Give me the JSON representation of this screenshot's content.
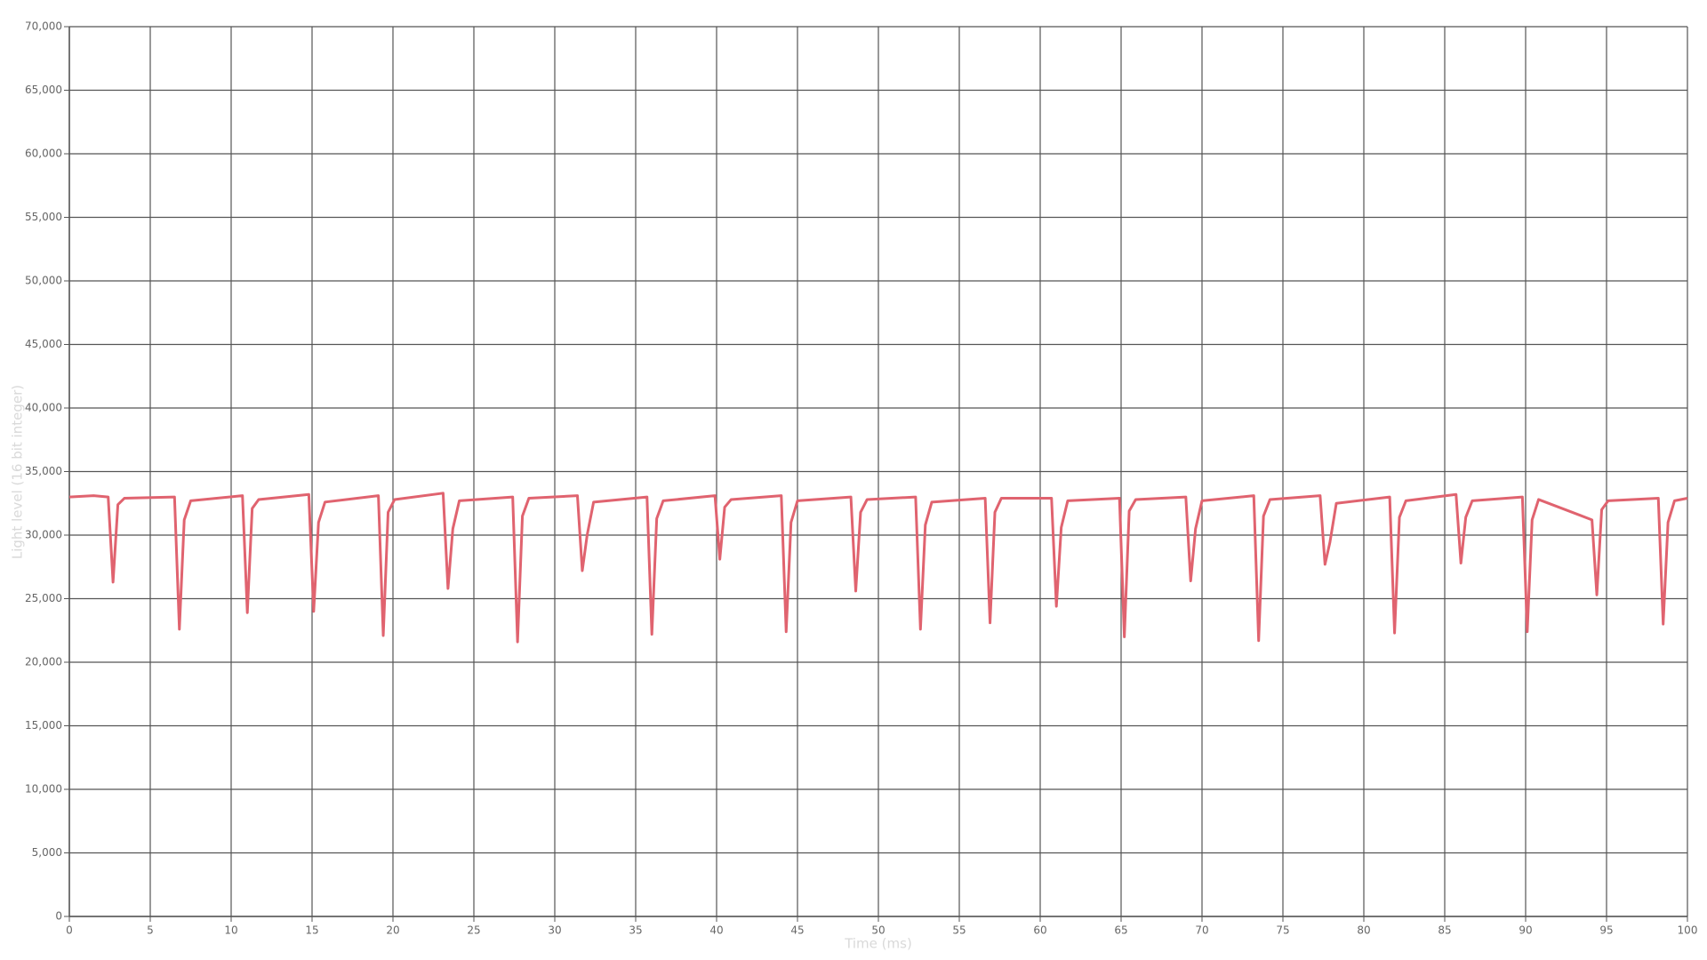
{
  "chart_data": {
    "type": "line",
    "x_label": "Time (ms)",
    "y_label": "Light level (16 bit integer)",
    "color": "#e0636f",
    "grid": true,
    "xlim": [
      0,
      100
    ],
    "xticks": [
      0,
      5,
      10,
      15,
      20,
      25,
      30,
      35,
      40,
      45,
      50,
      55,
      60,
      65,
      70,
      75,
      80,
      85,
      90,
      95,
      100
    ],
    "ylim": [
      0,
      70000
    ],
    "yticks": [
      0,
      {
        "value": 5000,
        "label": "5,000"
      },
      {
        "value": 10000,
        "label": "10,000"
      },
      {
        "value": 15000,
        "label": "15,000"
      },
      {
        "value": 20000,
        "label": "20,000"
      },
      {
        "value": 25000,
        "label": "25,000"
      },
      {
        "value": 30000,
        "label": "30,000"
      },
      {
        "value": 35000,
        "label": "35,000"
      },
      {
        "value": 40000,
        "label": "40,000"
      },
      {
        "value": 45000,
        "label": "45,000"
      },
      {
        "value": 50000,
        "label": "50,000"
      },
      {
        "value": 55000,
        "label": "55,000"
      },
      {
        "value": 60000,
        "label": "60,000"
      },
      {
        "value": 65000,
        "label": "65,000"
      },
      {
        "value": 70000,
        "label": "70,000"
      }
    ],
    "x": [
      0,
      1.5,
      2.4,
      2.7,
      3.0,
      3.4,
      6.5,
      6.8,
      7.1,
      7.5,
      10.7,
      11.0,
      11.3,
      11.7,
      14.8,
      15.1,
      15.4,
      15.8,
      19.1,
      19.4,
      19.7,
      20.1,
      23.1,
      23.4,
      23.7,
      24.1,
      27.4,
      27.7,
      28.0,
      28.4,
      31.4,
      31.7,
      32.0,
      32.4,
      35.7,
      36.0,
      36.3,
      36.7,
      39.9,
      40.2,
      40.5,
      40.9,
      44.0,
      44.3,
      44.6,
      45.0,
      48.3,
      48.6,
      48.9,
      49.3,
      52.3,
      52.6,
      52.9,
      53.3,
      56.6,
      56.9,
      57.2,
      57.6,
      60.7,
      61.0,
      61.3,
      61.7,
      64.9,
      65.2,
      65.5,
      65.9,
      69.0,
      69.3,
      69.6,
      70.0,
      73.2,
      73.5,
      73.8,
      74.2,
      77.3,
      77.6,
      77.9,
      78.3,
      81.6,
      81.9,
      82.2,
      82.6,
      85.7,
      86.0,
      86.3,
      86.7,
      89.8,
      90.1,
      90.4,
      90.8,
      94.1,
      94.4,
      94.7,
      95.1,
      98.2,
      98.5,
      98.8,
      99.2,
      100
    ],
    "values": [
      33000,
      33100,
      33000,
      26300,
      32400,
      32900,
      33000,
      22600,
      31200,
      32700,
      33100,
      23900,
      32100,
      32800,
      33200,
      24000,
      31000,
      32600,
      33100,
      22100,
      31800,
      32800,
      33300,
      25800,
      30500,
      32700,
      33000,
      21600,
      31500,
      32900,
      33100,
      27200,
      30000,
      32600,
      33000,
      22200,
      31300,
      32700,
      33100,
      28100,
      32200,
      32800,
      33100,
      22400,
      31000,
      32700,
      33000,
      25600,
      31800,
      32800,
      33000,
      22600,
      30800,
      32600,
      32900,
      23100,
      31800,
      32900,
      32900,
      24400,
      30600,
      32700,
      32900,
      22000,
      31900,
      32800,
      33000,
      26400,
      30500,
      32700,
      33100,
      21700,
      31500,
      32800,
      33100,
      27700,
      29400,
      32500,
      33000,
      22300,
      31400,
      32700,
      33200,
      27800,
      31400,
      32700,
      33000,
      22400,
      31200,
      32800,
      31200,
      25300,
      32000,
      32700,
      32900,
      23000,
      31000,
      32700,
      32900
    ]
  }
}
